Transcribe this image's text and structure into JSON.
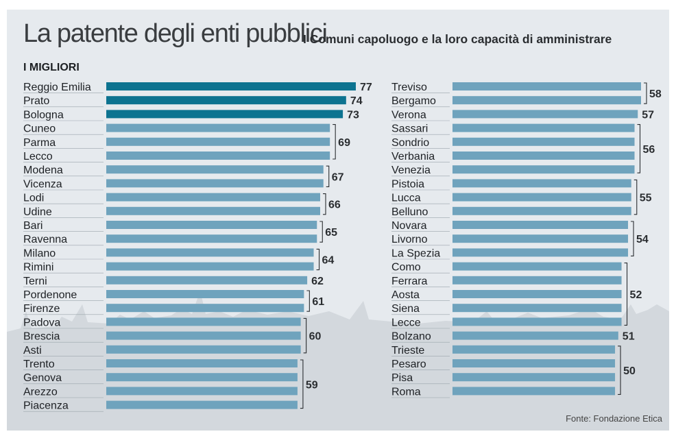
{
  "header": {
    "title": "La patente degli enti pubblici",
    "subtitle": "I Comuni capoluogo e la loro capacità di amministrare",
    "section": "I MIGLIORI",
    "source": "Fonte: Fondazione Etica"
  },
  "colors": {
    "bar": "#6fa3bd",
    "bar_top": "#0d7390",
    "background": "#e6eaee",
    "skyline": "#c9cfd5"
  },
  "chart_data": {
    "type": "bar",
    "orientation": "horizontal",
    "title": "La patente degli enti pubblici",
    "subtitle": "I Comuni capoluogo e la loro capacità di amministrare",
    "columns": [
      {
        "categories": [
          "Reggio Emilia",
          "Prato",
          "Bologna",
          "Cuneo",
          "Parma",
          "Lecco",
          "Modena",
          "Vicenza",
          "Lodi",
          "Udine",
          "Bari",
          "Ravenna",
          "Milano",
          "Rimini",
          "Terni",
          "Pordenone",
          "Firenze",
          "Padova",
          "Brescia",
          "Asti",
          "Trento",
          "Genova",
          "Arezzo",
          "Piacenza"
        ],
        "values": [
          77,
          74,
          73,
          69,
          69,
          69,
          67,
          67,
          66,
          66,
          65,
          65,
          64,
          64,
          62,
          61,
          61,
          60,
          60,
          60,
          59,
          59,
          59,
          59
        ],
        "highlighted": [
          true,
          true,
          true,
          false,
          false,
          false,
          false,
          false,
          false,
          false,
          false,
          false,
          false,
          false,
          false,
          false,
          false,
          false,
          false,
          false,
          false,
          false,
          false,
          false
        ],
        "value_labels": [
          {
            "text": "77",
            "from": 0,
            "to": 0
          },
          {
            "text": "74",
            "from": 1,
            "to": 1
          },
          {
            "text": "73",
            "from": 2,
            "to": 2
          },
          {
            "text": "69",
            "from": 3,
            "to": 5
          },
          {
            "text": "67",
            "from": 6,
            "to": 7
          },
          {
            "text": "66",
            "from": 8,
            "to": 9
          },
          {
            "text": "65",
            "from": 10,
            "to": 11
          },
          {
            "text": "64",
            "from": 12,
            "to": 13
          },
          {
            "text": "62",
            "from": 14,
            "to": 14
          },
          {
            "text": "61",
            "from": 15,
            "to": 16
          },
          {
            "text": "60",
            "from": 17,
            "to": 19
          },
          {
            "text": "59",
            "from": 20,
            "to": 23
          }
        ]
      },
      {
        "categories": [
          "Treviso",
          "Bergamo",
          "Verona",
          "Sassari",
          "Sondrio",
          "Verbania",
          "Venezia",
          "Pistoia",
          "Lucca",
          "Belluno",
          "Novara",
          "Livorno",
          "La Spezia",
          "Como",
          "Ferrara",
          "Aosta",
          "Siena",
          "Lecce",
          "Bolzano",
          "Trieste",
          "Pesaro",
          "Pisa",
          "Roma"
        ],
        "values": [
          58,
          58,
          57,
          56,
          56,
          56,
          56,
          55,
          55,
          55,
          54,
          54,
          54,
          52,
          52,
          52,
          52,
          52,
          51,
          50,
          50,
          50,
          50
        ],
        "value_labels": [
          {
            "text": "58",
            "from": 0,
            "to": 1
          },
          {
            "text": "57",
            "from": 2,
            "to": 2
          },
          {
            "text": "56",
            "from": 3,
            "to": 6
          },
          {
            "text": "55",
            "from": 7,
            "to": 9
          },
          {
            "text": "54",
            "from": 10,
            "to": 12
          },
          {
            "text": "52",
            "from": 13,
            "to": 17
          },
          {
            "text": "51",
            "from": 18,
            "to": 18
          },
          {
            "text": "50",
            "from": 19,
            "to": 22
          }
        ]
      }
    ]
  }
}
